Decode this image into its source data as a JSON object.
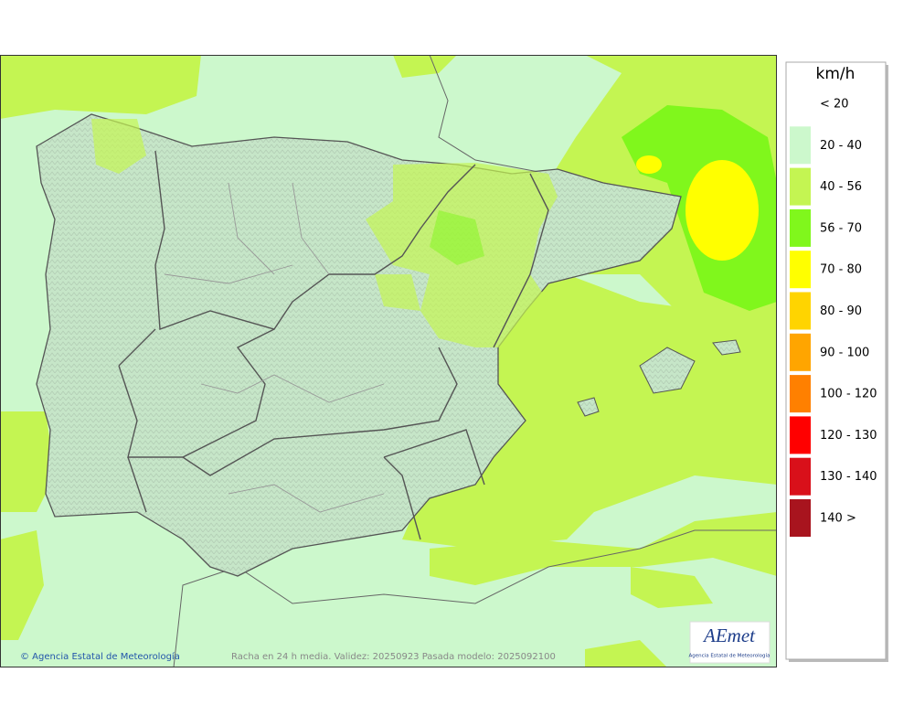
{
  "legend": {
    "unit": "km/h",
    "items": [
      {
        "label": "< 20",
        "color": null
      },
      {
        "label": "20 - 40",
        "color": "#ccf8cc"
      },
      {
        "label": "40 - 56",
        "color": "#c4f552"
      },
      {
        "label": "56 - 70",
        "color": "#80f71c"
      },
      {
        "label": "70 - 80",
        "color": "#ffff00"
      },
      {
        "label": "80 - 90",
        "color": "#ffd400"
      },
      {
        "label": "90 - 100",
        "color": "#ffa500"
      },
      {
        "label": "100 - 120",
        "color": "#ff8000"
      },
      {
        "label": "120 - 130",
        "color": "#ff0000"
      },
      {
        "label": "130 - 140",
        "color": "#d9101a"
      },
      {
        "label": "140 >",
        "color": "#a8141e"
      }
    ]
  },
  "footer": {
    "credit": "© Agencia Estatal de Meteorología",
    "caption": "Racha en 24 h media. Validez: 20250923 Pasada modelo: 2025092100"
  },
  "logo": {
    "name": "AEmet",
    "subtitle": "Agencia Estatal de Meteorología"
  }
}
